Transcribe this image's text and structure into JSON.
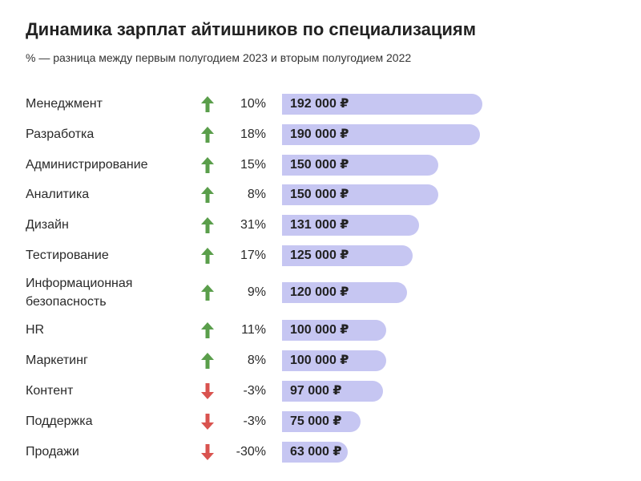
{
  "chart_data": {
    "type": "bar",
    "title": "Динамика зарплат айтишников по специализациям",
    "subtitle": "% — разница между первым полугодием 2023 и вторым полугодием 2022",
    "categories": [
      "Менеджмент",
      "Разработка",
      "Администрирование",
      "Аналитика",
      "Дизайн",
      "Тестирование",
      "Информационная безопасность",
      "HR",
      "Маркетинг",
      "Контент",
      "Поддержка",
      "Продажи"
    ],
    "values": [
      192000,
      190000,
      150000,
      150000,
      131000,
      125000,
      120000,
      100000,
      100000,
      97000,
      75000,
      63000
    ],
    "value_labels": [
      "192 000 ₽",
      "190 000 ₽",
      "150 000 ₽",
      "150 000 ₽",
      "131 000 ₽",
      "125 000 ₽",
      "120 000 ₽",
      "100 000 ₽",
      "100 000 ₽",
      "97 000 ₽",
      "75 000 ₽",
      "63 000 ₽"
    ],
    "change_pct": [
      10,
      18,
      15,
      8,
      31,
      17,
      9,
      11,
      8,
      -3,
      -3,
      -30
    ],
    "change_labels": [
      "10%",
      "18%",
      "15%",
      "8%",
      "31%",
      "17%",
      "9%",
      "11%",
      "8%",
      "-3%",
      "-3%",
      "-30%"
    ],
    "orientation": "horizontal",
    "xlim": [
      0,
      192000
    ],
    "grid": false,
    "colors": {
      "bar": "#c6c6f2",
      "up_arrow": "#5a9e4b",
      "down_arrow": "#d9534f"
    },
    "icons": {
      "up": "arrow-up-icon",
      "down": "arrow-down-icon"
    }
  }
}
